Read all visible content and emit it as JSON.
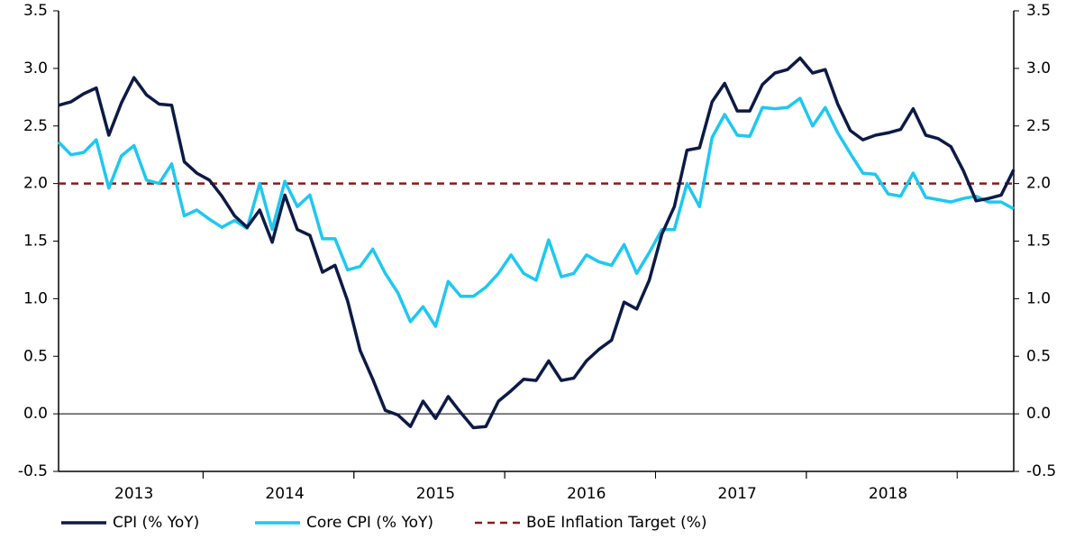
{
  "chart_data": {
    "type": "line",
    "categories": [
      null,
      null,
      null,
      null,
      null,
      null,
      "2013",
      null,
      null,
      null,
      null,
      null,
      null,
      null,
      null,
      null,
      null,
      null,
      "2014",
      null,
      null,
      null,
      null,
      null,
      null,
      null,
      null,
      null,
      null,
      null,
      "2015",
      null,
      null,
      null,
      null,
      null,
      null,
      null,
      null,
      null,
      null,
      null,
      "2016",
      null,
      null,
      null,
      null,
      null,
      null,
      null,
      null,
      null,
      null,
      null,
      "2017",
      null,
      null,
      null,
      null,
      null,
      null,
      null,
      null,
      null,
      null,
      null,
      "2018",
      null,
      null,
      null,
      null,
      null,
      null,
      null,
      null,
      null,
      null
    ],
    "series": [
      {
        "name": "CPI (% YoY)",
        "color": "#0d1a45",
        "axis": "y",
        "values": [
          2.68,
          2.71,
          2.78,
          2.83,
          2.42,
          2.7,
          2.92,
          2.77,
          2.69,
          2.68,
          2.19,
          2.09,
          2.03,
          1.89,
          1.72,
          1.62,
          1.77,
          1.49,
          1.9,
          1.6,
          1.55,
          1.23,
          1.29,
          0.98,
          0.55,
          0.3,
          0.03,
          -0.01,
          -0.11,
          0.11,
          -0.04,
          0.15,
          0.01,
          -0.12,
          -0.11,
          0.11,
          0.2,
          0.3,
          0.29,
          0.46,
          0.29,
          0.31,
          0.46,
          0.56,
          0.64,
          0.97,
          0.91,
          1.16,
          1.56,
          1.8,
          2.29,
          2.31,
          2.71,
          2.87,
          2.63,
          2.63,
          2.86,
          2.96,
          2.99,
          3.09,
          2.96,
          2.99,
          2.69,
          2.46,
          2.38,
          2.42,
          2.44,
          2.47,
          2.65,
          2.42,
          2.39,
          2.32,
          2.11,
          1.85,
          1.87,
          1.9,
          2.12
        ]
      },
      {
        "name": "Core CPI (% YoY)",
        "color": "#1ec8f0",
        "axis": "y",
        "values": [
          2.36,
          2.25,
          2.27,
          2.38,
          1.96,
          2.24,
          2.33,
          2.03,
          2.0,
          2.17,
          1.72,
          1.77,
          1.69,
          1.62,
          1.68,
          1.61,
          2.0,
          1.6,
          2.02,
          1.8,
          1.9,
          1.52,
          1.52,
          1.25,
          1.28,
          1.43,
          1.22,
          1.05,
          0.8,
          0.93,
          0.76,
          1.15,
          1.02,
          1.02,
          1.1,
          1.22,
          1.38,
          1.22,
          1.16,
          1.51,
          1.19,
          1.22,
          1.38,
          1.32,
          1.29,
          1.47,
          1.22,
          1.4,
          1.6,
          1.6,
          2.0,
          1.8,
          2.4,
          2.6,
          2.42,
          2.41,
          2.66,
          2.65,
          2.66,
          2.74,
          2.5,
          2.66,
          2.44,
          2.26,
          2.09,
          2.08,
          1.91,
          1.89,
          2.09,
          1.88,
          1.86,
          1.84,
          1.87,
          1.89,
          1.84,
          1.84,
          1.78
        ]
      },
      {
        "name": "BoE Inflation Target (%)",
        "color": "#8b1a1a",
        "axis": "y",
        "dashed": true,
        "values": [
          2,
          2,
          2,
          2,
          2,
          2,
          2,
          2,
          2,
          2,
          2,
          2,
          2,
          2,
          2,
          2,
          2,
          2,
          2,
          2,
          2,
          2,
          2,
          2,
          2,
          2,
          2,
          2,
          2,
          2,
          2,
          2,
          2,
          2,
          2,
          2,
          2,
          2,
          2,
          2,
          2,
          2,
          2,
          2,
          2,
          2,
          2,
          2,
          2,
          2,
          2,
          2,
          2,
          2,
          2,
          2,
          2,
          2,
          2,
          2,
          2,
          2,
          2,
          2,
          2,
          2,
          2,
          2,
          2,
          2,
          2,
          2,
          2,
          2,
          2,
          2,
          2
        ]
      }
    ],
    "ylim": [
      -0.5,
      3.5
    ],
    "yticks": [
      -0.5,
      {
        "value": 0,
        "label": "0.0"
      },
      0.5,
      {
        "value": 1,
        "label": "1.0"
      },
      1.5,
      {
        "value": 2,
        "label": "2.0"
      },
      2.5,
      {
        "value": 3,
        "label": "3.0"
      },
      3.5
    ],
    "y2lim": [
      -0.5,
      3.5
    ],
    "y2ticks": [
      -0.5,
      {
        "value": 0,
        "label": "0.0"
      },
      0.5,
      {
        "value": 1,
        "label": "1.0"
      },
      1.5,
      {
        "value": 2,
        "label": "2.0"
      },
      2.5,
      {
        "value": 3,
        "label": "3.0"
      },
      3.5
    ],
    "legend": "bottom"
  }
}
